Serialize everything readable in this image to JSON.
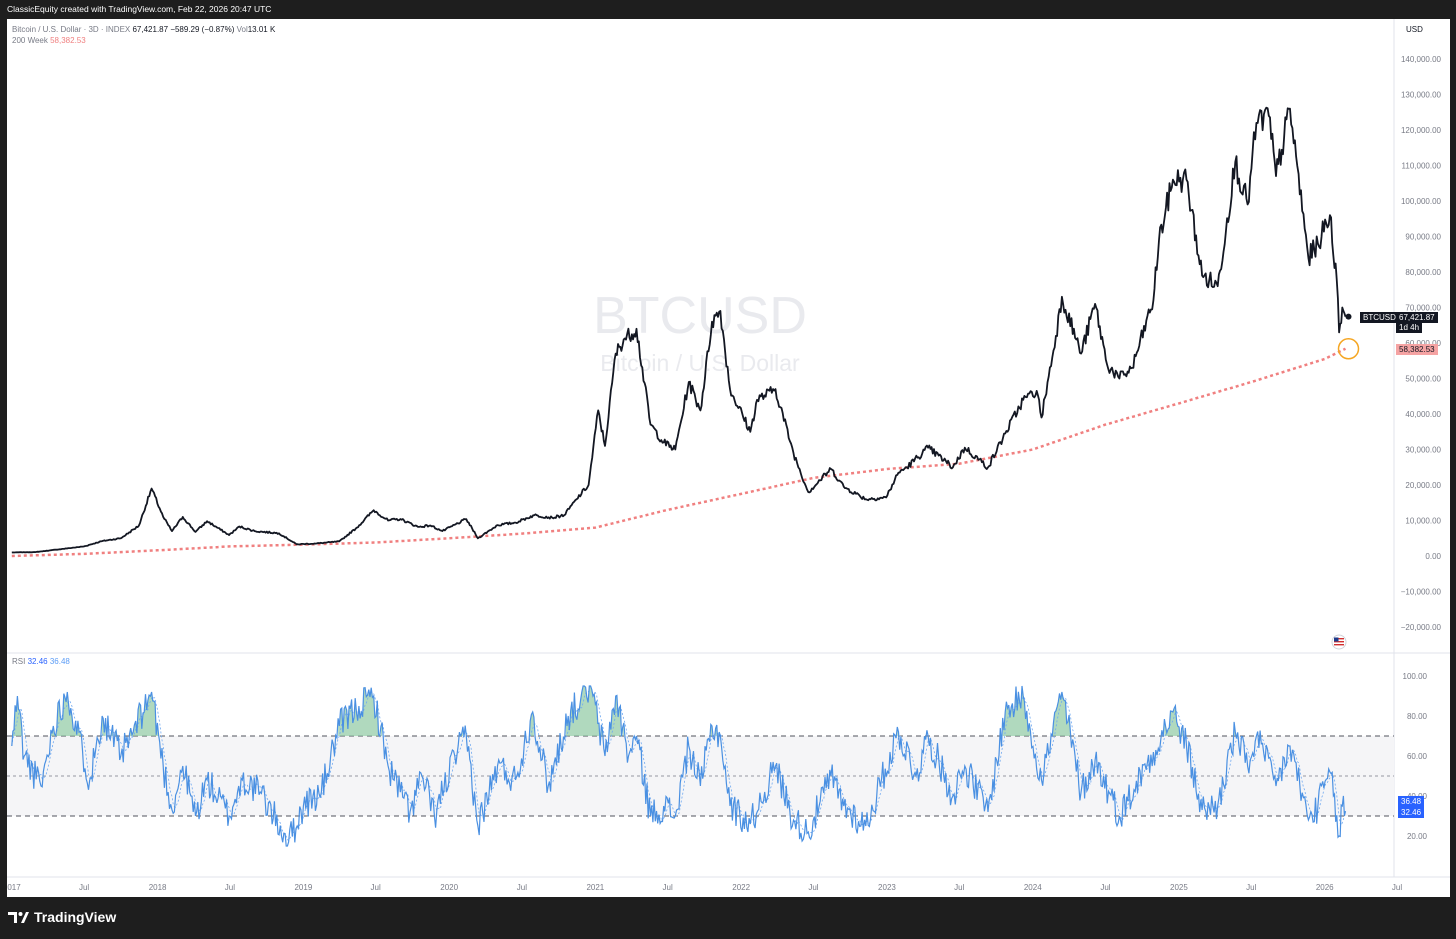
{
  "header": {
    "credit": "ClassicEquity created with TradingView.com, Feb 22, 2026 20:47 UTC"
  },
  "legend": {
    "symbol": "Bitcoin / U.S. Dollar · 3D · INDEX",
    "close": "67,421.87",
    "change": "−589.29 (−0.87%)",
    "vol_label": "Vol",
    "vol_value": "13.01 K",
    "ma_label": "200 Week",
    "ma_value": "58,382.53"
  },
  "watermark": {
    "symbol": "BTCUSD",
    "name": "Bitcoin / U.S. Dollar"
  },
  "price_scale": {
    "currency": "USD",
    "ticks": [
      "140,000.00",
      "130,000.00",
      "120,000.00",
      "110,000.00",
      "100,000.00",
      "90,000.00",
      "80,000.00",
      "70,000.00",
      "60,000.00",
      "50,000.00",
      "40,000.00",
      "30,000.00",
      "20,000.00",
      "10,000.00",
      "0.00",
      "−10,000.00",
      "−20,000.00"
    ],
    "tick_values": [
      140000,
      130000,
      120000,
      110000,
      100000,
      90000,
      80000,
      70000,
      60000,
      50000,
      40000,
      30000,
      20000,
      10000,
      0,
      -10000,
      -20000
    ],
    "last_price_tag": {
      "symbol": "BTCUSD",
      "price": "67,421.87",
      "countdown": "1d 4h"
    },
    "ma_tag": "58,382.53"
  },
  "rsi": {
    "label": "RSI",
    "rsi_value": "32.46",
    "ma_value": "36.48",
    "ticks": [
      "100.00",
      "80.00",
      "60.00",
      "40.00",
      "20.00"
    ],
    "tick_values": [
      100,
      80,
      60,
      40,
      20
    ],
    "bands": [
      70,
      50,
      30
    ]
  },
  "time_axis": {
    "labels": [
      "2017",
      "Jul",
      "2018",
      "Jul",
      "2019",
      "Jul",
      "2020",
      "Jul",
      "2021",
      "Jul",
      "2022",
      "Jul",
      "2023",
      "Jul",
      "2024",
      "Jul",
      "2025",
      "Jul",
      "2026",
      "Jul"
    ]
  },
  "colors": {
    "price": "#131722",
    "ma": "#f08080",
    "rsi": "#4a90e2",
    "rsi_ma": "#6fa8f0",
    "highlight": "#f5a623",
    "rsi_tag": "#2962ff"
  },
  "footer": {
    "brand": "TradingView"
  },
  "chart_data": {
    "type": "line",
    "title": "BTCUSD",
    "x_range": [
      "2017-01-01",
      "2026-07-31"
    ],
    "ylim": [
      -25000,
      145000
    ],
    "series": [
      {
        "name": "Bitcoin / U.S. Dollar",
        "points": [
          [
            "2017-01-01",
            1000
          ],
          [
            "2017-03-01",
            1100
          ],
          [
            "2017-05-01",
            1900
          ],
          [
            "2017-07-01",
            2700
          ],
          [
            "2017-08-15",
            4200
          ],
          [
            "2017-10-01",
            5000
          ],
          [
            "2017-11-15",
            8500
          ],
          [
            "2017-12-17",
            19000
          ],
          [
            "2018-01-15",
            11000
          ],
          [
            "2018-02-06",
            7000
          ],
          [
            "2018-03-05",
            11000
          ],
          [
            "2018-04-06",
            6800
          ],
          [
            "2018-05-05",
            9800
          ],
          [
            "2018-06-29",
            5900
          ],
          [
            "2018-07-25",
            8300
          ],
          [
            "2018-09-01",
            7000
          ],
          [
            "2018-11-01",
            6400
          ],
          [
            "2018-12-15",
            3300
          ],
          [
            "2019-02-01",
            3500
          ],
          [
            "2019-04-01",
            4100
          ],
          [
            "2019-05-15",
            8000
          ],
          [
            "2019-06-26",
            12900
          ],
          [
            "2019-08-01",
            10000
          ],
          [
            "2019-09-01",
            10400
          ],
          [
            "2019-10-15",
            8200
          ],
          [
            "2019-11-15",
            8600
          ],
          [
            "2019-12-15",
            7000
          ],
          [
            "2020-02-13",
            10400
          ],
          [
            "2020-03-13",
            5000
          ],
          [
            "2020-05-01",
            8700
          ],
          [
            "2020-06-15",
            9400
          ],
          [
            "2020-08-01",
            11500
          ],
          [
            "2020-09-15",
            10800
          ],
          [
            "2020-10-15",
            11500
          ],
          [
            "2020-11-15",
            16000
          ],
          [
            "2020-12-15",
            20000
          ],
          [
            "2021-01-08",
            41000
          ],
          [
            "2021-01-25",
            31000
          ],
          [
            "2021-02-21",
            57000
          ],
          [
            "2021-03-13",
            61000
          ],
          [
            "2021-04-14",
            64000
          ],
          [
            "2021-05-19",
            37000
          ],
          [
            "2021-06-21",
            32000
          ],
          [
            "2021-07-20",
            30000
          ],
          [
            "2021-08-23",
            49000
          ],
          [
            "2021-09-21",
            41000
          ],
          [
            "2021-10-20",
            66000
          ],
          [
            "2021-11-10",
            69000
          ],
          [
            "2021-12-04",
            47000
          ],
          [
            "2022-01-24",
            35000
          ],
          [
            "2022-02-10",
            44000
          ],
          [
            "2022-03-28",
            47000
          ],
          [
            "2022-05-12",
            29000
          ],
          [
            "2022-06-18",
            18000
          ],
          [
            "2022-08-14",
            24500
          ],
          [
            "2022-09-15",
            19500
          ],
          [
            "2022-11-09",
            16000
          ],
          [
            "2022-12-30",
            16500
          ],
          [
            "2023-01-30",
            23500
          ],
          [
            "2023-02-20",
            25000
          ],
          [
            "2023-04-14",
            30500
          ],
          [
            "2023-06-15",
            25000
          ],
          [
            "2023-07-15",
            30500
          ],
          [
            "2023-09-11",
            25000
          ],
          [
            "2023-10-24",
            34500
          ],
          [
            "2023-12-08",
            44000
          ],
          [
            "2024-01-11",
            46500
          ],
          [
            "2024-01-23",
            39000
          ],
          [
            "2024-02-28",
            62000
          ],
          [
            "2024-03-14",
            73000
          ],
          [
            "2024-05-01",
            57000
          ],
          [
            "2024-06-05",
            71000
          ],
          [
            "2024-07-05",
            54000
          ],
          [
            "2024-08-05",
            50000
          ],
          [
            "2024-09-06",
            53000
          ],
          [
            "2024-10-29",
            72000
          ],
          [
            "2024-11-12",
            89000
          ],
          [
            "2024-12-17",
            106000
          ],
          [
            "2025-01-20",
            106000
          ],
          [
            "2025-02-28",
            79000
          ],
          [
            "2025-04-08",
            76000
          ],
          [
            "2025-05-22",
            111000
          ],
          [
            "2025-06-22",
            99000
          ],
          [
            "2025-07-14",
            122000
          ],
          [
            "2025-08-14",
            124000
          ],
          [
            "2025-09-01",
            107000
          ],
          [
            "2025-10-06",
            126000
          ],
          [
            "2025-11-21",
            84000
          ],
          [
            "2025-12-15",
            88000
          ],
          [
            "2026-01-14",
            96000
          ],
          [
            "2026-01-31",
            78000
          ],
          [
            "2026-02-06",
            63000
          ],
          [
            "2026-02-14",
            70000
          ],
          [
            "2026-02-22",
            67421.87
          ]
        ]
      },
      {
        "name": "200 Week",
        "points": [
          [
            "2017-01-01",
            0
          ],
          [
            "2017-07-01",
            600
          ],
          [
            "2018-01-01",
            1600
          ],
          [
            "2018-07-01",
            2700
          ],
          [
            "2019-01-01",
            3200
          ],
          [
            "2019-07-01",
            3800
          ],
          [
            "2020-01-01",
            5000
          ],
          [
            "2020-07-01",
            6300
          ],
          [
            "2021-01-01",
            8000
          ],
          [
            "2021-07-01",
            13000
          ],
          [
            "2022-01-01",
            17500
          ],
          [
            "2022-07-01",
            22000
          ],
          [
            "2023-01-01",
            24500
          ],
          [
            "2023-07-01",
            26000
          ],
          [
            "2024-01-01",
            30000
          ],
          [
            "2024-07-01",
            37000
          ],
          [
            "2025-01-01",
            43000
          ],
          [
            "2025-07-01",
            49000
          ],
          [
            "2026-01-01",
            55500
          ],
          [
            "2026-02-22",
            58382.53
          ]
        ]
      }
    ],
    "rsi_series": {
      "name": "RSI",
      "ylim": [
        0,
        110
      ],
      "points": [
        [
          "2017-01-01",
          65
        ],
        [
          "2017-01-15",
          90
        ],
        [
          "2017-02-01",
          60
        ],
        [
          "2017-03-15",
          45
        ],
        [
          "2017-04-15",
          75
        ],
        [
          "2017-05-20",
          92
        ],
        [
          "2017-07-15",
          48
        ],
        [
          "2017-08-15",
          80
        ],
        [
          "2017-10-01",
          60
        ],
        [
          "2017-11-01",
          72
        ],
        [
          "2017-12-17",
          92
        ],
        [
          "2018-01-15",
          55
        ],
        [
          "2018-02-06",
          33
        ],
        [
          "2018-03-05",
          55
        ],
        [
          "2018-04-06",
          30
        ],
        [
          "2018-05-05",
          48
        ],
        [
          "2018-06-29",
          30
        ],
        [
          "2018-08-01",
          48
        ],
        [
          "2018-09-15",
          42
        ],
        [
          "2018-11-25",
          17
        ],
        [
          "2019-01-01",
          35
        ],
        [
          "2019-02-15",
          42
        ],
        [
          "2019-04-01",
          75
        ],
        [
          "2019-05-20",
          85
        ],
        [
          "2019-06-26",
          90
        ],
        [
          "2019-08-01",
          55
        ],
        [
          "2019-09-25",
          32
        ],
        [
          "2019-10-25",
          50
        ],
        [
          "2019-11-25",
          30
        ],
        [
          "2020-01-15",
          60
        ],
        [
          "2020-02-13",
          70
        ],
        [
          "2020-03-13",
          25
        ],
        [
          "2020-05-01",
          55
        ],
        [
          "2020-06-15",
          48
        ],
        [
          "2020-07-28",
          82
        ],
        [
          "2020-09-05",
          45
        ],
        [
          "2020-10-25",
          80
        ],
        [
          "2020-11-25",
          88
        ],
        [
          "2020-12-20",
          95
        ],
        [
          "2021-01-25",
          60
        ],
        [
          "2021-02-21",
          90
        ],
        [
          "2021-03-25",
          60
        ],
        [
          "2021-04-14",
          70
        ],
        [
          "2021-05-19",
          30
        ],
        [
          "2021-06-21",
          35
        ],
        [
          "2021-07-20",
          30
        ],
        [
          "2021-08-23",
          65
        ],
        [
          "2021-09-21",
          45
        ],
        [
          "2021-10-20",
          75
        ],
        [
          "2021-11-10",
          70
        ],
        [
          "2021-12-04",
          35
        ],
        [
          "2022-01-24",
          26
        ],
        [
          "2022-03-28",
          55
        ],
        [
          "2022-05-12",
          28
        ],
        [
          "2022-06-18",
          22
        ],
        [
          "2022-08-14",
          50
        ],
        [
          "2022-09-15",
          35
        ],
        [
          "2022-11-09",
          25
        ],
        [
          "2023-01-30",
          72
        ],
        [
          "2023-03-15",
          50
        ],
        [
          "2023-04-14",
          70
        ],
        [
          "2023-06-15",
          40
        ],
        [
          "2023-07-15",
          55
        ],
        [
          "2023-09-11",
          32
        ],
        [
          "2023-10-24",
          82
        ],
        [
          "2023-12-08",
          90
        ],
        [
          "2024-01-23",
          48
        ],
        [
          "2024-03-14",
          92
        ],
        [
          "2024-05-01",
          42
        ],
        [
          "2024-06-05",
          58
        ],
        [
          "2024-08-05",
          30
        ],
        [
          "2024-10-29",
          62
        ],
        [
          "2024-12-17",
          82
        ],
        [
          "2025-01-20",
          65
        ],
        [
          "2025-02-28",
          33
        ],
        [
          "2025-04-08",
          35
        ],
        [
          "2025-05-22",
          72
        ],
        [
          "2025-06-22",
          55
        ],
        [
          "2025-07-14",
          70
        ],
        [
          "2025-09-01",
          45
        ],
        [
          "2025-10-06",
          65
        ],
        [
          "2025-11-21",
          28
        ],
        [
          "2025-12-15",
          35
        ],
        [
          "2026-01-14",
          52
        ],
        [
          "2026-02-06",
          20
        ],
        [
          "2026-02-14",
          35
        ],
        [
          "2026-02-22",
          32.46
        ]
      ]
    }
  }
}
